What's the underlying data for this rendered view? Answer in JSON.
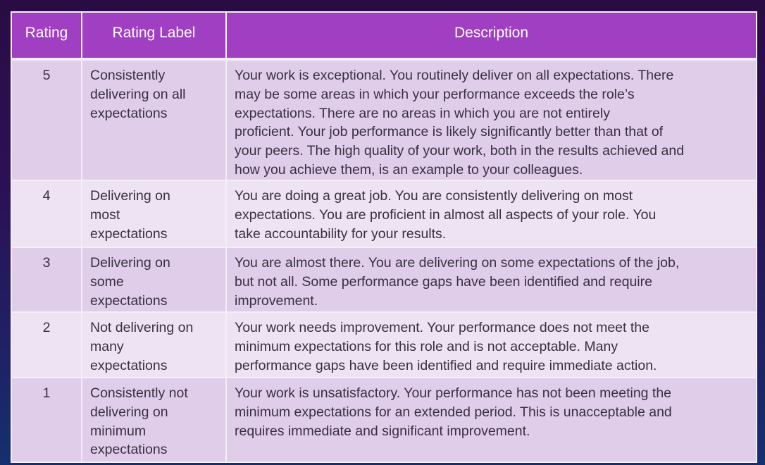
{
  "table": {
    "headers": [
      "Rating",
      "Rating Label",
      "Description"
    ],
    "rows": [
      {
        "rating": "5",
        "label": "Consistently\ndelivering on all\nexpectations",
        "description": "Your work is exceptional. You routinely deliver on all expectations. There\nmay be some areas in which your performance exceeds the role’s\nexpectations. There are no areas in which you are not entirely\nproficient. Your job performance is likely significantly better than that of\nyour peers. The high quality of your work, both in the results achieved and\nhow you achieve them, is an example to your colleagues."
      },
      {
        "rating": "4",
        "label": "Delivering on\nmost\nexpectations",
        "description": "You are doing a great job.  You are consistently delivering on most\nexpectations.  You are proficient in almost all aspects of your role.  You\ntake accountability for your results."
      },
      {
        "rating": "3",
        "label": "Delivering on\nsome\nexpectations",
        "description": "You are almost there. You are delivering on some expectations of the job,\nbut not all. Some performance gaps have been identified and require\nimprovement."
      },
      {
        "rating": "2",
        "label": "Not delivering on\nmany\nexpectations",
        "description": "Your work needs improvement.  Your performance does not meet the\nminimum expectations for this role and is not acceptable. Many\nperformance gaps have been identified and require immediate action."
      },
      {
        "rating": "1",
        "label": "Consistently not\ndelivering on\nminimum\nexpectations",
        "description": "Your work is unsatisfactory.  Your performance has not been meeting the\nminimum expectations for an extended period.  This is unacceptable and\nrequires immediate and significant improvement."
      }
    ]
  },
  "colors": {
    "header": "#a13fc2",
    "row_odd": "#dfcdea",
    "row_even": "#ede3f2"
  }
}
